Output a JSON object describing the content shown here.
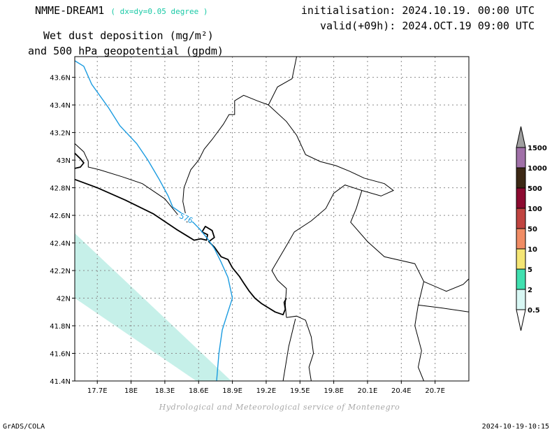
{
  "header": {
    "model": "NMME-DREAM1",
    "resolution": "( dx=dy=0.05 degree )",
    "title_line1": "Wet dust deposition (mg/m²)",
    "title_line2": "and 500 hPa geopotential (gpdm)",
    "init": "initialisation: 2024.10.19. 00:00 UTC",
    "valid": "valid(+09h): 2024.OCT.19 09:00 UTC"
  },
  "map": {
    "lon_range": [
      17.5,
      21.0
    ],
    "lat_range": [
      41.4,
      43.75
    ],
    "lon_ticks": [
      {
        "value": 17.7,
        "label": "17.7E"
      },
      {
        "value": 18.0,
        "label": "18E"
      },
      {
        "value": 18.3,
        "label": "18.3E"
      },
      {
        "value": 18.6,
        "label": "18.6E"
      },
      {
        "value": 18.9,
        "label": "18.9E"
      },
      {
        "value": 19.2,
        "label": "19.2E"
      },
      {
        "value": 19.5,
        "label": "19.5E"
      },
      {
        "value": 19.8,
        "label": "19.8E"
      },
      {
        "value": 20.1,
        "label": "20.1E"
      },
      {
        "value": 20.4,
        "label": "20.4E"
      },
      {
        "value": 20.7,
        "label": "20.7E"
      }
    ],
    "lat_ticks": [
      {
        "value": 41.4,
        "label": "41.4N"
      },
      {
        "value": 41.6,
        "label": "41.6N"
      },
      {
        "value": 41.8,
        "label": "41.8N"
      },
      {
        "value": 42.0,
        "label": "42N"
      },
      {
        "value": 42.2,
        "label": "42.2N"
      },
      {
        "value": 42.4,
        "label": "42.4N"
      },
      {
        "value": 42.6,
        "label": "42.6N"
      },
      {
        "value": 42.8,
        "label": "42.8N"
      },
      {
        "value": 43.0,
        "label": "43N"
      },
      {
        "value": 43.2,
        "label": "43.2N"
      },
      {
        "value": 43.4,
        "label": "43.4N"
      },
      {
        "value": 43.6,
        "label": "43.6N"
      }
    ],
    "grid": true,
    "deposition_band": {
      "value_class": "0.5-2",
      "color": "#c6f0e9",
      "polygon": [
        [
          17.5,
          42.47
        ],
        [
          18.89,
          41.4
        ],
        [
          18.58,
          41.4
        ],
        [
          17.5,
          42.0
        ]
      ]
    },
    "geopotential_contour": {
      "label": "576",
      "color": "#1a9be0",
      "points": [
        [
          17.5,
          43.72
        ],
        [
          17.58,
          43.68
        ],
        [
          17.65,
          43.55
        ],
        [
          17.8,
          43.38
        ],
        [
          17.9,
          43.25
        ],
        [
          18.05,
          43.12
        ],
        [
          18.15,
          43.0
        ],
        [
          18.25,
          42.86
        ],
        [
          18.33,
          42.74
        ],
        [
          18.37,
          42.66
        ],
        [
          18.44,
          42.62
        ],
        [
          18.49,
          42.58
        ],
        [
          18.55,
          42.55
        ],
        [
          18.61,
          42.5
        ],
        [
          18.68,
          42.43
        ],
        [
          18.74,
          42.36
        ],
        [
          18.8,
          42.26
        ],
        [
          18.86,
          42.15
        ],
        [
          18.9,
          42.0
        ],
        [
          18.86,
          41.9
        ],
        [
          18.81,
          41.77
        ],
        [
          18.78,
          41.6
        ],
        [
          18.76,
          41.4
        ]
      ]
    },
    "coastline": [
      [
        [
          17.5,
          43.05
        ],
        [
          17.55,
          43.01
        ],
        [
          17.58,
          42.98
        ],
        [
          17.55,
          42.95
        ],
        [
          17.5,
          42.94
        ]
      ],
      [
        [
          17.5,
          42.86
        ],
        [
          17.7,
          42.8
        ],
        [
          17.95,
          42.71
        ],
        [
          18.2,
          42.61
        ],
        [
          18.4,
          42.5
        ],
        [
          18.5,
          42.45
        ],
        [
          18.56,
          42.42
        ],
        [
          18.62,
          42.43
        ],
        [
          18.67,
          42.42
        ],
        [
          18.68,
          42.46
        ],
        [
          18.63,
          42.48
        ],
        [
          18.66,
          42.52
        ],
        [
          18.72,
          42.49
        ],
        [
          18.74,
          42.44
        ],
        [
          18.69,
          42.41
        ],
        [
          18.74,
          42.37
        ],
        [
          18.8,
          42.3
        ],
        [
          18.86,
          42.28
        ],
        [
          18.9,
          42.22
        ],
        [
          18.96,
          42.16
        ],
        [
          19.0,
          42.11
        ],
        [
          19.05,
          42.05
        ],
        [
          19.1,
          42.0
        ],
        [
          19.16,
          41.96
        ],
        [
          19.22,
          41.93
        ],
        [
          19.28,
          41.9
        ],
        [
          19.35,
          41.88
        ],
        [
          19.37,
          41.92
        ],
        [
          19.36,
          41.97
        ],
        [
          19.38,
          42.0
        ]
      ]
    ],
    "borders": [
      [
        [
          17.5,
          43.12
        ],
        [
          17.58,
          43.06
        ],
        [
          17.62,
          42.99
        ],
        [
          17.62,
          42.95
        ],
        [
          17.72,
          42.93
        ],
        [
          17.92,
          42.88
        ],
        [
          18.1,
          42.83
        ],
        [
          18.3,
          42.72
        ],
        [
          18.42,
          42.6
        ],
        [
          18.5,
          42.55
        ]
      ],
      [
        [
          18.5,
          42.55
        ],
        [
          18.46,
          42.7
        ],
        [
          18.47,
          42.8
        ],
        [
          18.53,
          42.93
        ],
        [
          18.6,
          43.0
        ],
        [
          18.65,
          43.08
        ],
        [
          18.72,
          43.15
        ],
        [
          18.82,
          43.26
        ],
        [
          18.87,
          43.33
        ],
        [
          18.92,
          43.33
        ],
        [
          18.92,
          43.43
        ],
        [
          19.0,
          43.47
        ],
        [
          19.12,
          43.43
        ],
        [
          19.22,
          43.4
        ],
        [
          19.3,
          43.53
        ],
        [
          19.43,
          43.59
        ],
        [
          19.47,
          43.75
        ]
      ],
      [
        [
          19.22,
          43.4
        ],
        [
          19.38,
          43.28
        ],
        [
          19.47,
          43.18
        ],
        [
          19.55,
          43.04
        ],
        [
          19.68,
          42.99
        ],
        [
          19.82,
          42.96
        ],
        [
          19.94,
          42.92
        ],
        [
          20.07,
          42.87
        ],
        [
          20.25,
          42.83
        ],
        [
          20.33,
          42.78
        ],
        [
          20.22,
          42.74
        ],
        [
          20.05,
          42.78
        ],
        [
          19.9,
          42.82
        ],
        [
          19.8,
          42.76
        ],
        [
          19.73,
          42.65
        ],
        [
          19.6,
          42.56
        ],
        [
          19.45,
          42.48
        ],
        [
          19.38,
          42.38
        ],
        [
          19.25,
          42.2
        ],
        [
          19.3,
          42.13
        ],
        [
          19.38,
          42.07
        ],
        [
          19.37,
          41.95
        ],
        [
          19.38,
          41.86
        ]
      ],
      [
        [
          20.05,
          42.78
        ],
        [
          20.0,
          42.65
        ],
        [
          19.95,
          42.55
        ],
        [
          20.1,
          42.41
        ],
        [
          20.25,
          42.3
        ],
        [
          20.52,
          42.25
        ],
        [
          20.6,
          42.12
        ],
        [
          20.55,
          41.95
        ],
        [
          20.52,
          41.8
        ],
        [
          20.58,
          41.62
        ],
        [
          20.55,
          41.5
        ],
        [
          20.6,
          41.4
        ]
      ],
      [
        [
          19.38,
          41.86
        ],
        [
          19.47,
          41.87
        ],
        [
          19.55,
          41.84
        ],
        [
          19.6,
          41.72
        ],
        [
          19.62,
          41.6
        ],
        [
          19.58,
          41.5
        ],
        [
          19.6,
          41.4
        ]
      ],
      [
        [
          20.6,
          42.12
        ],
        [
          20.8,
          42.05
        ],
        [
          20.95,
          42.1
        ],
        [
          21.0,
          42.14
        ]
      ],
      [
        [
          20.55,
          41.95
        ],
        [
          20.75,
          41.93
        ],
        [
          21.0,
          41.9
        ]
      ],
      [
        [
          19.46,
          41.85
        ],
        [
          19.4,
          41.65
        ],
        [
          19.35,
          41.4
        ]
      ]
    ]
  },
  "colorbar": {
    "colors": [
      "#d8f7f4",
      "#40e0b0",
      "#f4e574",
      "#f08c64",
      "#c04440",
      "#8c0a30",
      "#3c2814",
      "#a070a8"
    ],
    "cap_colors": {
      "top": "#a0a0a0",
      "bottom": "#ffffff"
    },
    "labels": [
      "0.5",
      "2",
      "5",
      "10",
      "50",
      "100",
      "500",
      "1000",
      "1500"
    ]
  },
  "footer": {
    "credit": "Hydrological and Meteorological service of Montenegro",
    "left": "GrADS/COLA",
    "right": "2024-10-19-10:15"
  }
}
